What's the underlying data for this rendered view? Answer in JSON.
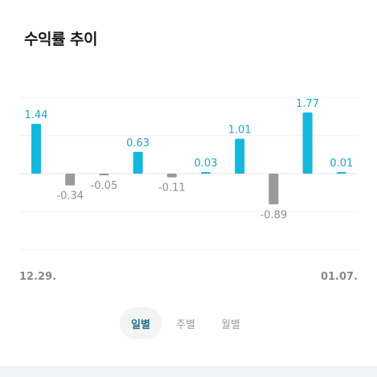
{
  "header": {
    "title": "수익률 추이"
  },
  "chart_data": {
    "type": "bar",
    "categories": [
      "12.29.",
      "",
      "",
      "",
      "",
      "",
      "",
      "",
      "",
      "01.07."
    ],
    "values": [
      1.44,
      -0.34,
      -0.05,
      0.63,
      -0.11,
      0.03,
      1.01,
      -0.89,
      1.77,
      0.01
    ],
    "value_labels": [
      "1.44",
      "-0.34",
      "-0.05",
      "0.63",
      "-0.11",
      "0.03",
      "1.01",
      "-0.89",
      "1.77",
      "0.01"
    ],
    "ylim": [
      -2.2,
      2.2
    ],
    "grid": true,
    "colors": {
      "positive": "#14b8dd",
      "negative": "#9a9a9a",
      "positive_label": "#19a7c9",
      "negative_label": "#8f8f8f"
    }
  },
  "xaxis": {
    "first_label": "12.29.",
    "last_label": "01.07."
  },
  "period_tabs": [
    {
      "label": "일별",
      "active": true
    },
    {
      "label": "주별",
      "active": false
    },
    {
      "label": "월별",
      "active": false
    }
  ]
}
